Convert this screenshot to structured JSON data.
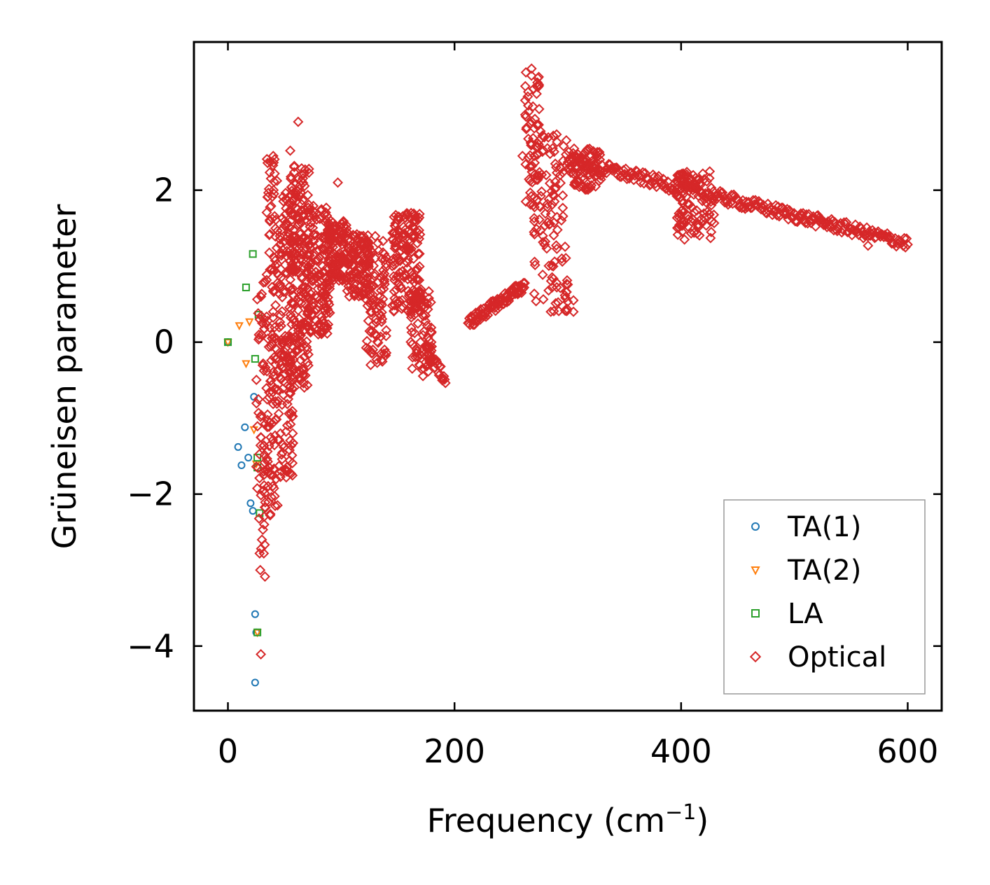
{
  "chart_data": {
    "type": "scatter",
    "title": "",
    "xlabel": "Frequency (cm",
    "xlabel_sup": "−1",
    "xlabel_suffix": ")",
    "ylabel": "Grüneisen parameter",
    "xlim": [
      -30,
      630
    ],
    "ylim": [
      -4.85,
      3.95
    ],
    "xticks": [
      0,
      200,
      400,
      600
    ],
    "yticks": [
      -4,
      -2,
      0,
      2
    ],
    "xtick_labels": [
      "0",
      "200",
      "400",
      "600"
    ],
    "ytick_labels": [
      "−4",
      "−2",
      "0",
      "2"
    ],
    "grid": false,
    "legend_position": "bottom-right",
    "series": [
      {
        "name": "TA(1)",
        "marker": "circle",
        "color": "#1f77b4",
        "points": [
          [
            0,
            0
          ],
          [
            9,
            -1.38
          ],
          [
            12,
            -1.62
          ],
          [
            15,
            -1.12
          ],
          [
            18,
            -1.52
          ],
          [
            20,
            -2.12
          ],
          [
            22,
            -2.22
          ],
          [
            23,
            -0.72
          ],
          [
            24,
            -3.58
          ],
          [
            24,
            -4.48
          ],
          [
            25,
            -3.82
          ]
        ]
      },
      {
        "name": "TA(2)",
        "marker": "triangle-down",
        "color": "#ff7f0e",
        "points": [
          [
            0,
            0
          ],
          [
            10,
            0.22
          ],
          [
            16,
            -0.28
          ],
          [
            19,
            0.27
          ],
          [
            23,
            -1.15
          ],
          [
            25,
            -1.6
          ],
          [
            26,
            -3.82
          ]
        ]
      },
      {
        "name": "LA",
        "marker": "square",
        "color": "#2ca02c",
        "points": [
          [
            0,
            0
          ],
          [
            16,
            0.72
          ],
          [
            22,
            1.16
          ],
          [
            24,
            -0.22
          ],
          [
            26,
            -1.52
          ],
          [
            27,
            0.36
          ],
          [
            28,
            -2.25
          ],
          [
            26,
            -1.65
          ],
          [
            26,
            -3.82
          ]
        ]
      },
      {
        "name": "Optical",
        "marker": "diamond",
        "color": "#d62728",
        "clusters": [
          {
            "xr": [
              25,
              35
            ],
            "yr": [
              -2.8,
              0.8
            ],
            "n": 60
          },
          {
            "xr": [
              26,
              36
            ],
            "yr": [
              -4.12,
              -2.0
            ],
            "n": 6
          },
          {
            "xr": [
              34,
              44
            ],
            "yr": [
              -2.3,
              2.45
            ],
            "n": 120
          },
          {
            "xr": [
              44,
              58
            ],
            "yr": [
              -1.8,
              2.0
            ],
            "n": 160
          },
          {
            "xr": [
              55,
              72
            ],
            "yr": [
              -0.6,
              2.4
            ],
            "n": 200
          },
          {
            "xr": [
              70,
              90
            ],
            "yr": [
              0.1,
              1.8
            ],
            "n": 160
          },
          {
            "xr": [
              88,
              105
            ],
            "yr": [
              0.8,
              1.6
            ],
            "n": 110
          },
          {
            "xr": [
              105,
              125
            ],
            "yr": [
              0.6,
              1.45
            ],
            "n": 110
          },
          {
            "xr": [
              122,
              140
            ],
            "yr": [
              -0.3,
              1.4
            ],
            "n": 100
          },
          {
            "xr": [
              145,
              170
            ],
            "yr": [
              0.4,
              1.7
            ],
            "n": 150
          },
          {
            "xr": [
              160,
              180
            ],
            "yr": [
              -0.45,
              0.7
            ],
            "n": 80
          }
        ],
        "lines": [
          {
            "x0": 175,
            "y0": -0.1,
            "x1": 192,
            "y1": -0.5,
            "n": 25
          },
          {
            "x0": 212,
            "y0": 0.25,
            "x1": 262,
            "y1": 0.75,
            "n": 90
          },
          {
            "x0": 300,
            "y0": 2.4,
            "x1": 600,
            "y1": 1.3,
            "n": 300
          }
        ],
        "extra_clusters": [
          {
            "xr": [
              262,
              275
            ],
            "yr": [
              1.6,
              3.55
            ],
            "n": 60
          },
          {
            "xr": [
              270,
              300
            ],
            "yr": [
              0.4,
              2.8
            ],
            "n": 120
          },
          {
            "xr": [
              300,
              330
            ],
            "yr": [
              2.0,
              2.55
            ],
            "n": 80
          },
          {
            "xr": [
              395,
              430
            ],
            "yr": [
              1.4,
              2.25
            ],
            "n": 100
          }
        ],
        "outliers": [
          [
            62,
            2.9
          ],
          [
            55,
            2.52
          ],
          [
            40,
            2.45
          ],
          [
            97,
            2.1
          ],
          [
            165,
            1.67
          ],
          [
            126,
            -0.3
          ],
          [
            128,
            -0.1
          ],
          [
            163,
            -0.2
          ],
          [
            305,
            0.55
          ],
          [
            305,
            0.4
          ],
          [
            403,
            1.35
          ],
          [
            426,
            1.37
          ],
          [
            565,
            1.27
          ],
          [
            268,
            3.6
          ],
          [
            263,
            3.55
          ],
          [
            260,
            2.45
          ],
          [
            285,
            0.4
          ],
          [
            30,
            -2.6
          ],
          [
            28,
            -2.78
          ]
        ]
      }
    ]
  }
}
